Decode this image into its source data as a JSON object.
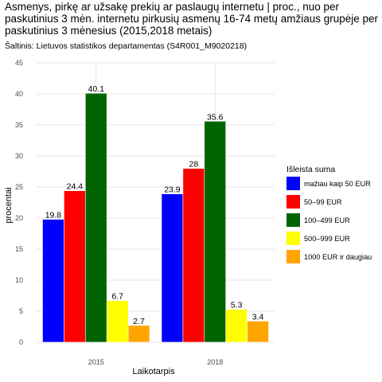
{
  "chart_data": {
    "type": "bar",
    "title": "Asmenys, pirkę ar užsakę prekių ar paslaugų internetu | proc., nuo per paskutinius 3 mėn. internetu pirkusių asmenų 16-74 metų amžiaus grupėje per paskutinius 3 mėnesius (2015,2018 metais)",
    "subtitle": "Šaltinis: Lietuvos statistikos departamentas (S4R001_M9020218)",
    "xlabel": "Laikotarpis",
    "ylabel": "procentai",
    "categories": [
      "2015",
      "2018"
    ],
    "yticks": [
      "0",
      "5",
      "10",
      "15",
      "20",
      "25",
      "30",
      "35",
      "40",
      "45"
    ],
    "ylim": [
      0,
      45
    ],
    "grid": true,
    "legend": {
      "title": "Išleista suma",
      "position": "right"
    },
    "series": [
      {
        "name": "mažiau kaip 50 EUR",
        "color": "#0000ff",
        "values": [
          19.8,
          23.9
        ],
        "labels": [
          "19.8",
          "23.9"
        ]
      },
      {
        "name": "50–99 EUR",
        "color": "#ff0000",
        "values": [
          24.4,
          28
        ],
        "labels": [
          "24.4",
          "28"
        ]
      },
      {
        "name": "100–499 EUR",
        "color": "#006400",
        "values": [
          40.1,
          35.6
        ],
        "labels": [
          "40.1",
          "35.6"
        ]
      },
      {
        "name": "500–999 EUR",
        "color": "#ffff00",
        "values": [
          6.7,
          5.3
        ],
        "labels": [
          "6.7",
          "5.3"
        ]
      },
      {
        "name": "1000 EUR ir daugiau",
        "color": "#ffa500",
        "values": [
          2.7,
          3.4
        ],
        "labels": [
          "2.7",
          "3.4"
        ]
      }
    ]
  }
}
